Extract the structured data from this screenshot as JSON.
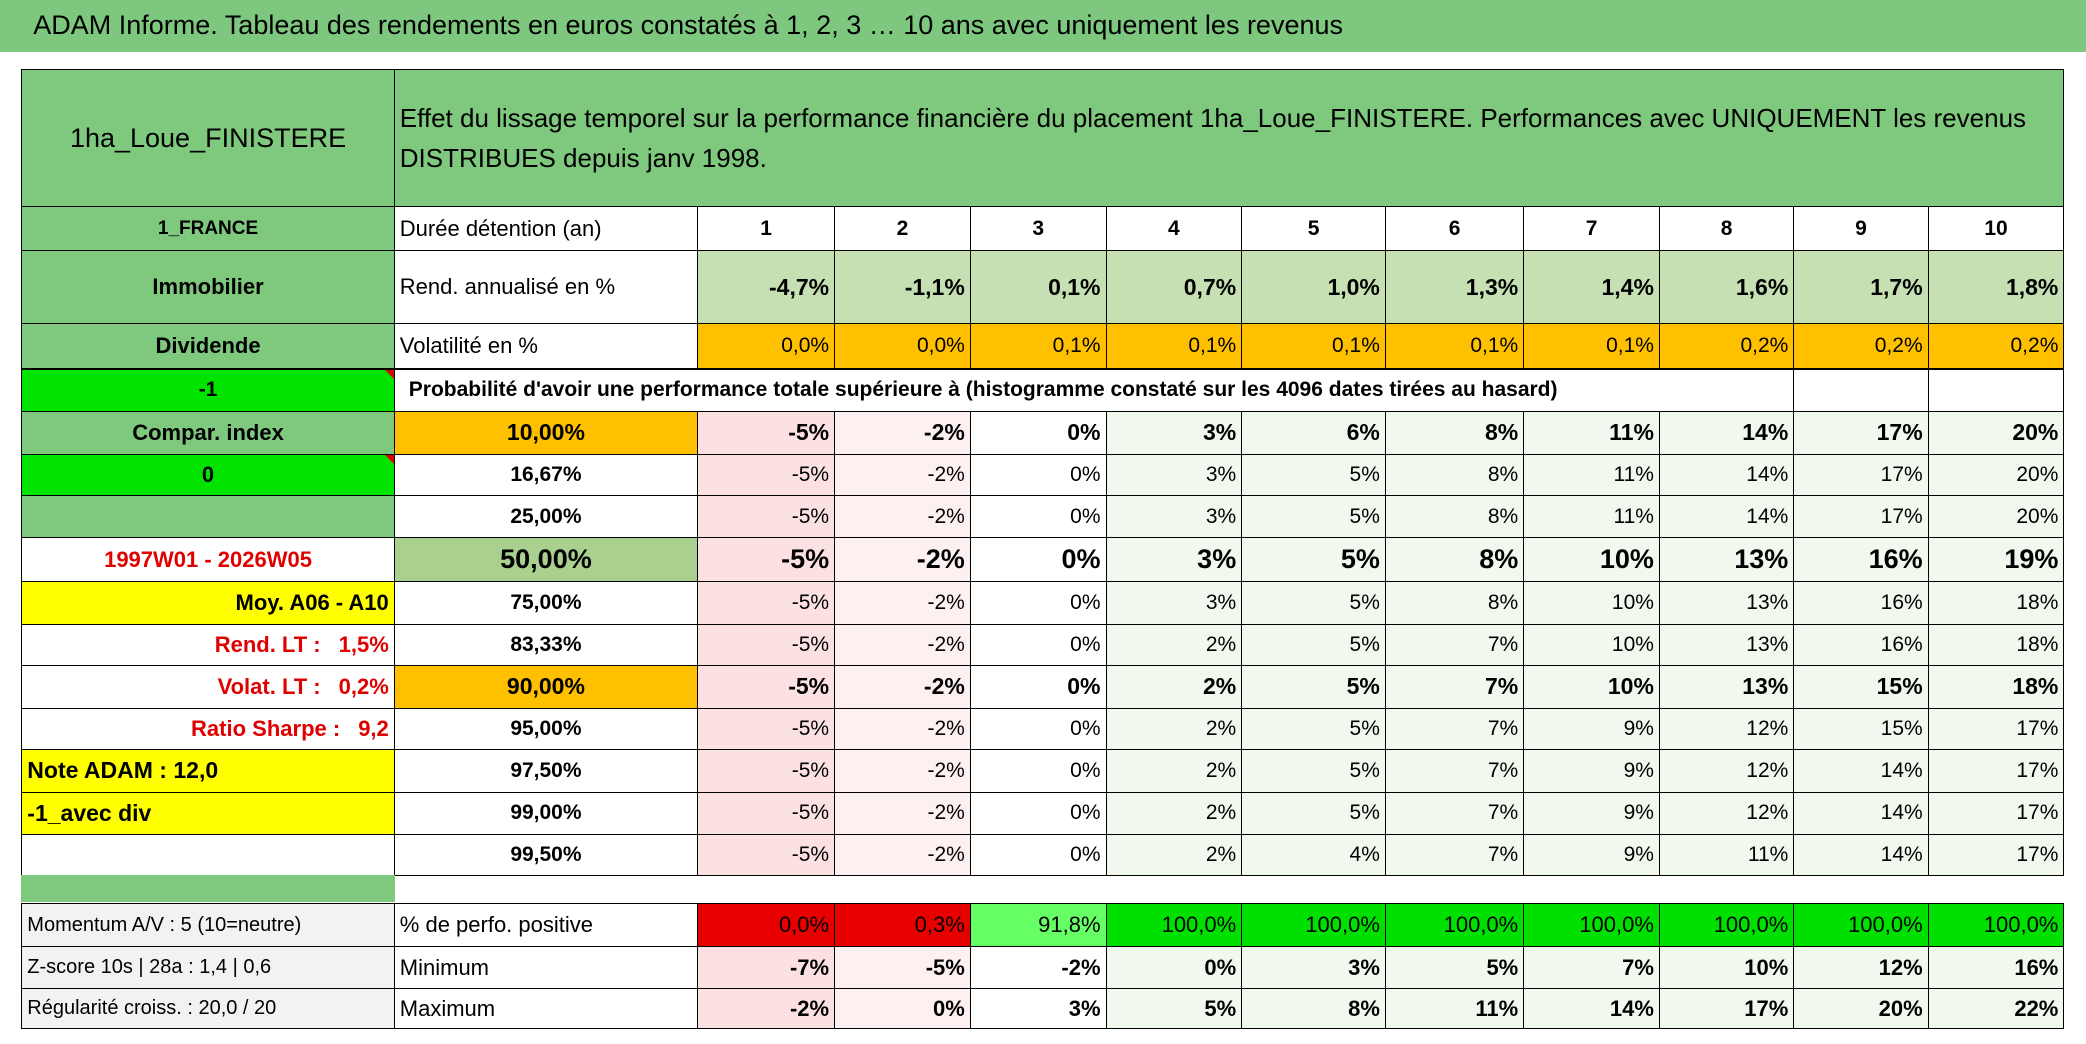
{
  "title": "ADAM Informe. Tableau des rendements en euros constatés à 1, 2, 3 … 10 ans avec uniquement les revenus",
  "header": {
    "fund_name": "1ha_Loue_FINISTERE",
    "description": "Effet du lissage temporel sur la performance financière du placement 1ha_Loue_FINISTERE. Performances avec UNIQUEMENT les revenus DISTRIBUES depuis janv 1998."
  },
  "side_panel": {
    "category": "1_FRANCE",
    "asset_class": "Immobilier",
    "income_type": "Dividende",
    "code": "-1",
    "compar_index_label": "Compar. index",
    "compar_index_value": "0",
    "period": "1997W01 - 2026W05",
    "average": "Moy. A06 - A10",
    "rend_lt": {
      "label": "Rend. LT :",
      "value": "1,5%"
    },
    "volat_lt": {
      "label": "Volat. LT :",
      "value": "0,2%"
    },
    "sharpe": {
      "label": "Ratio Sharpe :",
      "value": "9,2"
    },
    "note": "Note ADAM : 12,0",
    "variant": "-1_avec div",
    "momentum": "Momentum A/V : 5 (10=neutre)",
    "zscore": "Z-score 10s | 28a : 1,4 | 0,6",
    "regularity": "Régularité croiss. : 20,0 / 20"
  },
  "summary": {
    "duration": {
      "label": "Durée détention (an)",
      "values": [
        "1",
        "2",
        "3",
        "4",
        "5",
        "6",
        "7",
        "8",
        "9",
        "10"
      ]
    },
    "annual_return": {
      "label": "Rend. annualisé en %",
      "values": [
        "-4,7%",
        "-1,1%",
        "0,1%",
        "0,7%",
        "1,0%",
        "1,3%",
        "1,4%",
        "1,6%",
        "1,7%",
        "1,8%"
      ]
    },
    "volatility": {
      "label": "Volatilité en %",
      "values": [
        "0,0%",
        "0,0%",
        "0,1%",
        "0,1%",
        "0,1%",
        "0,1%",
        "0,1%",
        "0,2%",
        "0,2%",
        "0,2%"
      ]
    }
  },
  "percentile_table": {
    "caption": "Probabilité d'avoir une performance totale supérieure à (histogramme constaté sur les 4096 dates tirées au hasard)",
    "rows": [
      {
        "percentile": "10,00%",
        "values": [
          "-5%",
          "-2%",
          "0%",
          "3%",
          "6%",
          "8%",
          "11%",
          "14%",
          "17%",
          "20%"
        ]
      },
      {
        "percentile": "16,67%",
        "values": [
          "-5%",
          "-2%",
          "0%",
          "3%",
          "5%",
          "8%",
          "11%",
          "14%",
          "17%",
          "20%"
        ]
      },
      {
        "percentile": "25,00%",
        "values": [
          "-5%",
          "-2%",
          "0%",
          "3%",
          "5%",
          "8%",
          "11%",
          "14%",
          "17%",
          "20%"
        ]
      },
      {
        "percentile": "50,00%",
        "values": [
          "-5%",
          "-2%",
          "0%",
          "3%",
          "5%",
          "8%",
          "10%",
          "13%",
          "16%",
          "19%"
        ]
      },
      {
        "percentile": "75,00%",
        "values": [
          "-5%",
          "-2%",
          "0%",
          "3%",
          "5%",
          "8%",
          "10%",
          "13%",
          "16%",
          "18%"
        ]
      },
      {
        "percentile": "83,33%",
        "values": [
          "-5%",
          "-2%",
          "0%",
          "2%",
          "5%",
          "7%",
          "10%",
          "13%",
          "16%",
          "18%"
        ]
      },
      {
        "percentile": "90,00%",
        "values": [
          "-5%",
          "-2%",
          "0%",
          "2%",
          "5%",
          "7%",
          "10%",
          "13%",
          "15%",
          "18%"
        ]
      },
      {
        "percentile": "95,00%",
        "values": [
          "-5%",
          "-2%",
          "0%",
          "2%",
          "5%",
          "7%",
          "9%",
          "12%",
          "15%",
          "17%"
        ]
      },
      {
        "percentile": "97,50%",
        "values": [
          "-5%",
          "-2%",
          "0%",
          "2%",
          "5%",
          "7%",
          "9%",
          "12%",
          "14%",
          "17%"
        ]
      },
      {
        "percentile": "99,00%",
        "values": [
          "-5%",
          "-2%",
          "0%",
          "2%",
          "5%",
          "7%",
          "9%",
          "12%",
          "14%",
          "17%"
        ]
      },
      {
        "percentile": "99,50%",
        "values": [
          "-5%",
          "-2%",
          "0%",
          "2%",
          "4%",
          "7%",
          "9%",
          "11%",
          "14%",
          "17%"
        ]
      }
    ]
  },
  "stats": {
    "positive": {
      "label": "% de perfo. positive",
      "values": [
        "0,0%",
        "0,3%",
        "91,8%",
        "100,0%",
        "100,0%",
        "100,0%",
        "100,0%",
        "100,0%",
        "100,0%",
        "100,0%"
      ]
    },
    "minimum": {
      "label": "Minimum",
      "values": [
        "-7%",
        "-5%",
        "-2%",
        "0%",
        "3%",
        "5%",
        "7%",
        "10%",
        "12%",
        "16%"
      ]
    },
    "maximum": {
      "label": "Maximum",
      "values": [
        "-2%",
        "0%",
        "3%",
        "5%",
        "8%",
        "11%",
        "14%",
        "17%",
        "20%",
        "22%"
      ]
    }
  }
}
